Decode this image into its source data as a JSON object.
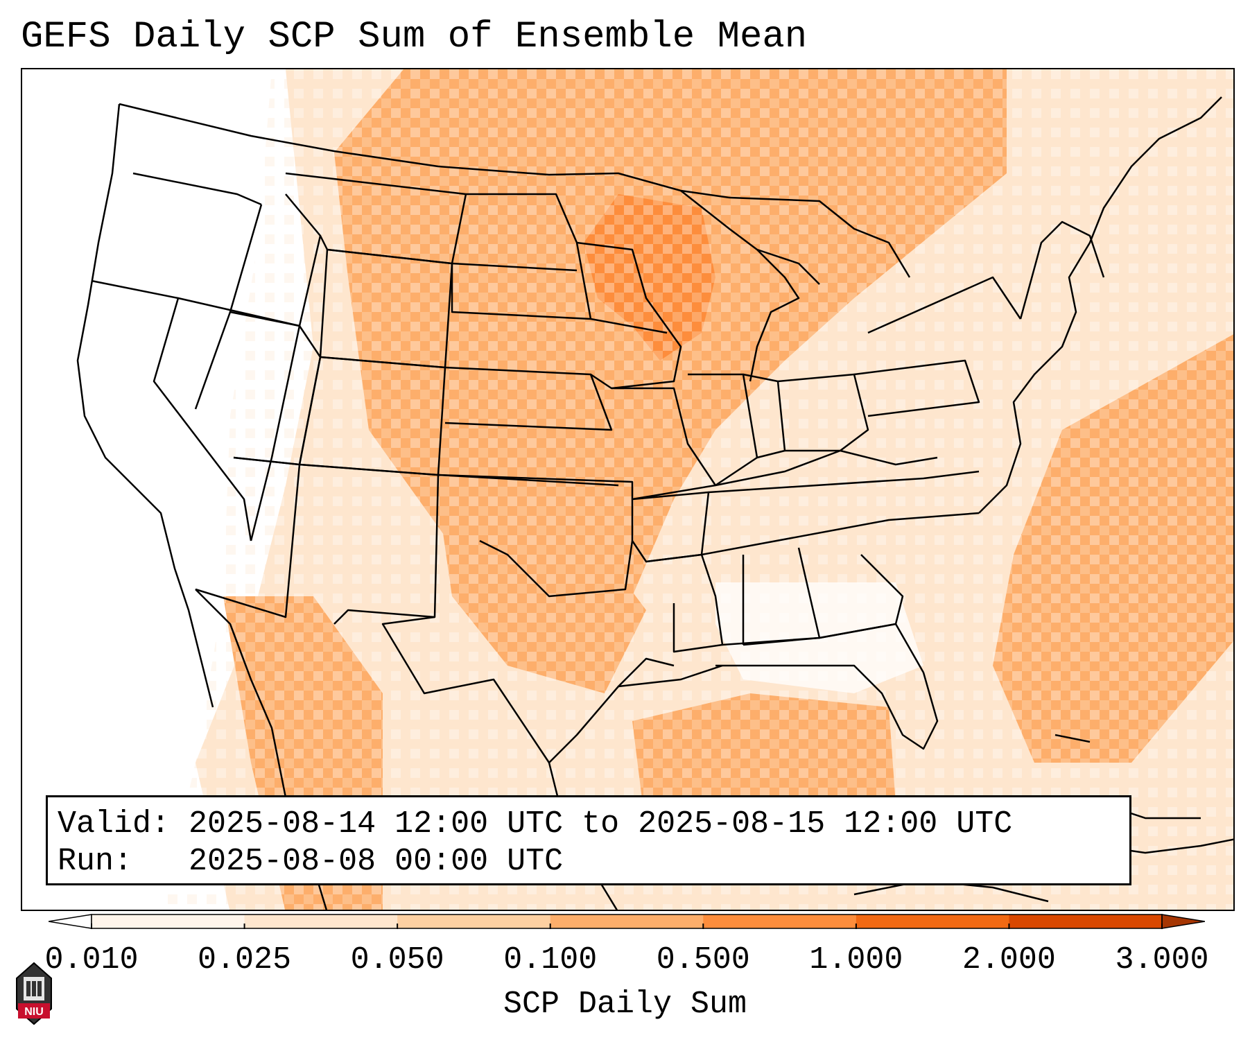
{
  "title": "GEFS Daily SCP Sum of Ensemble Mean",
  "info": {
    "valid_label": "Valid:",
    "valid_value": "2025-08-14 12:00 UTC to 2025-08-15 12:00 UTC",
    "run_label": "Run:",
    "run_value": "2025-08-08 00:00 UTC"
  },
  "colorbar": {
    "title": "SCP Daily Sum",
    "ticks": [
      "0.010",
      "0.025",
      "0.050",
      "0.100",
      "0.500",
      "1.000",
      "2.000",
      "3.000"
    ],
    "colors": [
      "#fff5eb",
      "#fee6ce",
      "#fdd0a2",
      "#fdae6b",
      "#fd8d3c",
      "#f16913",
      "#d94801"
    ],
    "extend_min_color": "#ffffff",
    "extend_max_color": "#a63603"
  },
  "logo": {
    "text": "NIU"
  }
}
